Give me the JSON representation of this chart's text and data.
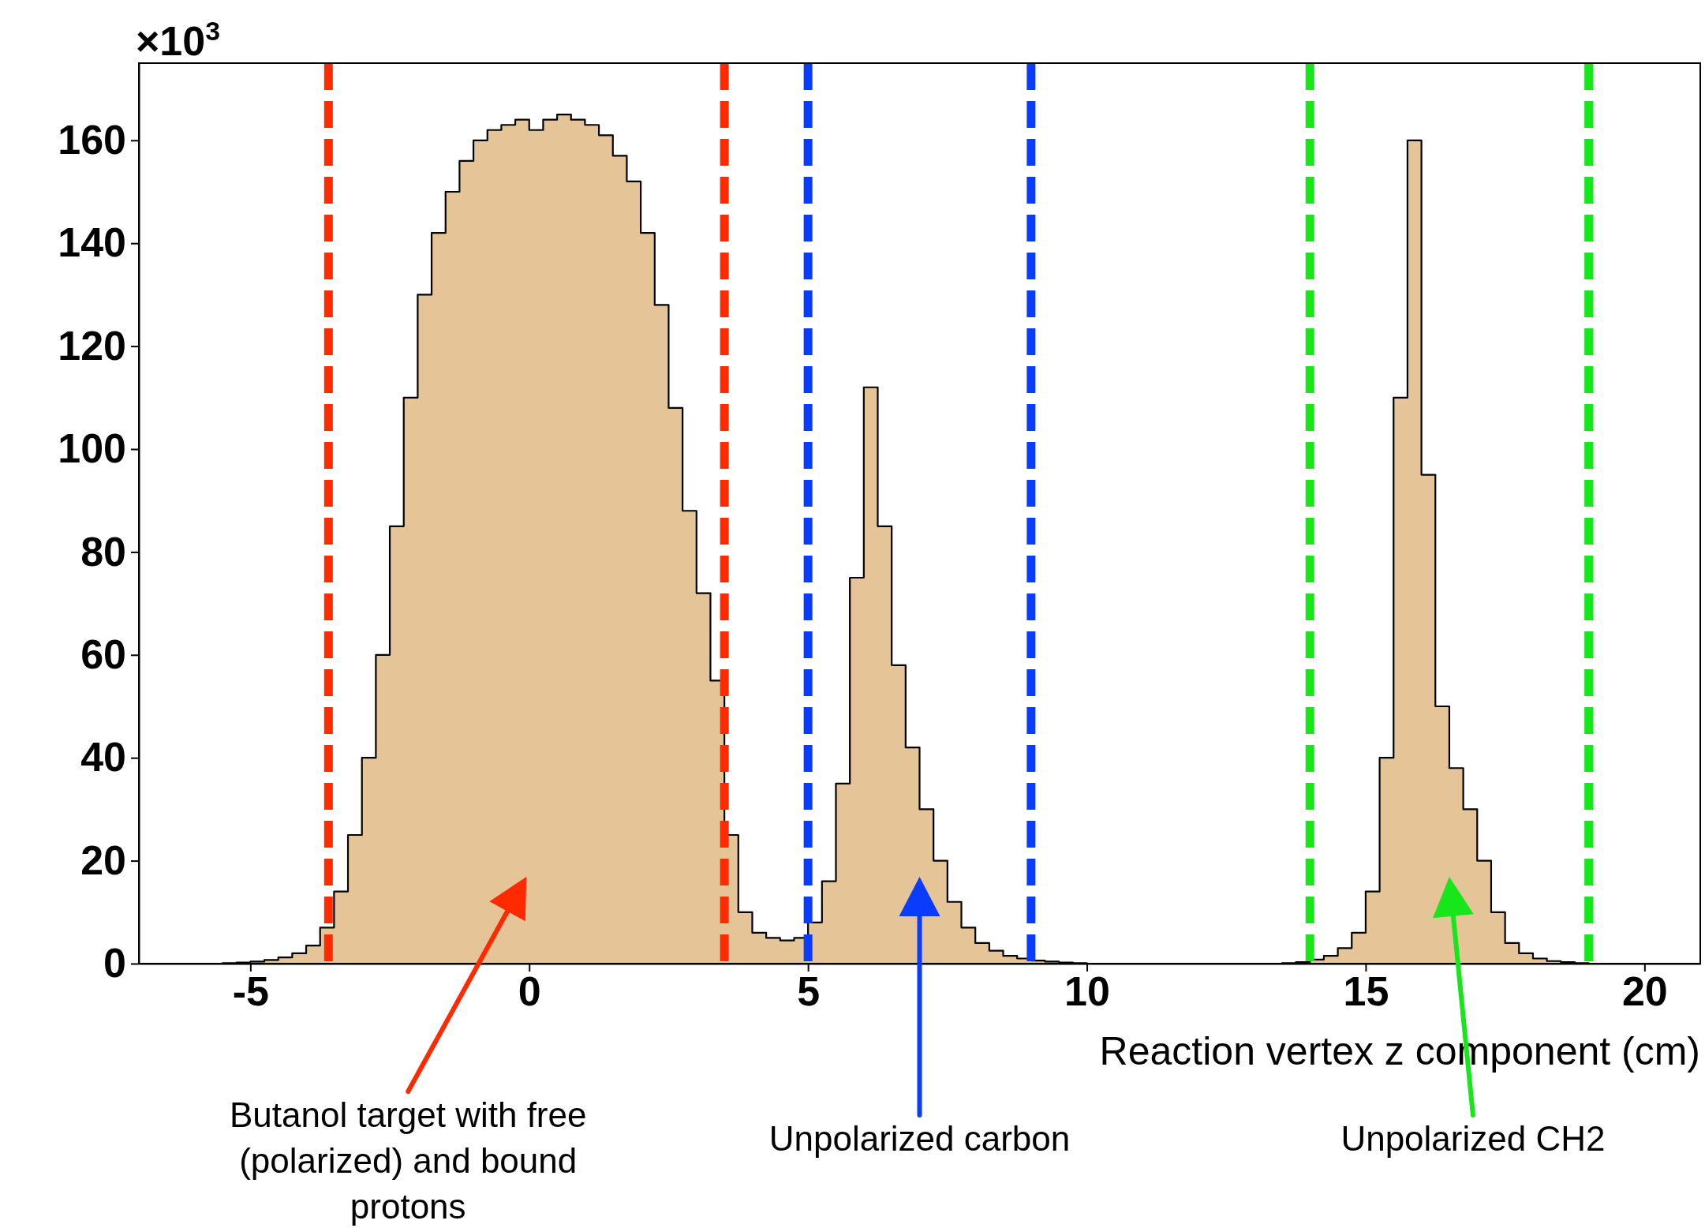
{
  "chart_data": {
    "type": "histogram",
    "xlabel": "Reaction vertex z component  (cm)",
    "ylabel": "×10$^{3}$",
    "color": "#e5c598",
    "xlim": [
      -7,
      21
    ],
    "xticks": [
      -5,
      0,
      5,
      10,
      15,
      20
    ],
    "ylim": [
      0,
      175
    ],
    "yticks": [
      0,
      20,
      40,
      60,
      80,
      100,
      120,
      140,
      160
    ],
    "bins": [
      -7,
      -6.75,
      -6.5,
      -6.25,
      -6,
      -5.75,
      -5.5,
      -5.25,
      -5,
      -4.75,
      -4.5,
      -4.25,
      -4,
      -3.75,
      -3.5,
      -3.25,
      -3,
      -2.75,
      -2.5,
      -2.25,
      -2,
      -1.75,
      -1.5,
      -1.25,
      -1,
      -0.75,
      -0.5,
      -0.25,
      0,
      0.25,
      0.5,
      0.75,
      1,
      1.25,
      1.5,
      1.75,
      2,
      2.25,
      2.5,
      2.75,
      3,
      3.25,
      3.5,
      3.75,
      4,
      4.25,
      4.5,
      4.75,
      5,
      5.25,
      5.5,
      5.75,
      6,
      6.25,
      6.5,
      6.75,
      7,
      7.25,
      7.5,
      7.75,
      8,
      8.25,
      8.5,
      8.75,
      9,
      9.25,
      9.5,
      9.75,
      10,
      10.25,
      10.5,
      10.75,
      11,
      11.25,
      11.5,
      11.75,
      12,
      12.25,
      12.5,
      12.75,
      13,
      13.25,
      13.5,
      13.75,
      14,
      14.25,
      14.5,
      14.75,
      15,
      15.25,
      15.5,
      15.75,
      16,
      16.25,
      16.5,
      16.75,
      17,
      17.25,
      17.5,
      17.75,
      18,
      18.25,
      18.5,
      18.75,
      19,
      19.25,
      19.5,
      19.75,
      20,
      20.25,
      20.5,
      20.75,
      21
    ],
    "values": [
      0,
      0,
      0,
      0,
      0,
      0,
      0.1,
      0.2,
      0.4,
      0.7,
      1.2,
      2,
      3.5,
      7,
      14,
      25,
      40,
      60,
      85,
      110,
      130,
      142,
      150,
      156,
      160,
      162,
      163,
      164,
      162,
      164,
      165,
      164,
      163,
      161,
      157,
      152,
      142,
      128,
      108,
      88,
      72,
      55,
      25,
      10,
      6,
      5,
      4.5,
      5,
      8,
      16,
      35,
      75,
      112,
      85,
      58,
      42,
      30,
      20,
      12,
      7,
      4,
      2.5,
      1.5,
      1,
      0.6,
      0.4,
      0.2,
      0.1,
      0,
      0,
      0,
      0,
      0,
      0,
      0,
      0,
      0,
      0,
      0,
      0,
      0,
      0,
      0.1,
      0.3,
      0.8,
      1.5,
      3,
      6,
      14,
      40,
      110,
      160,
      95,
      50,
      38,
      30,
      20,
      10,
      4,
      2,
      1,
      0.5,
      0.3,
      0.1,
      0,
      0,
      0,
      0,
      0,
      0,
      0,
      0
    ],
    "ref_lines": [
      {
        "axis": "x",
        "value": -3.6,
        "color": "#ff2a00",
        "line_style": "dashed"
      },
      {
        "axis": "x",
        "value": 3.5,
        "color": "#ff2a00",
        "line_style": "dashed"
      },
      {
        "axis": "x",
        "value": 5,
        "color": "#0a3cff",
        "line_style": "dashed"
      },
      {
        "axis": "x",
        "value": 9,
        "color": "#0a3cff",
        "line_style": "dashed"
      },
      {
        "axis": "x",
        "value": 14,
        "color": "#16e61a",
        "line_style": "dashed"
      },
      {
        "axis": "x",
        "value": 19,
        "color": "#16e61a",
        "line_style": "dashed"
      }
    ],
    "annotations": [
      "Butanol target with free (polarized) and bound protons",
      "Unpolarized carbon",
      "Unpolarized CH2"
    ],
    "grid": false
  }
}
